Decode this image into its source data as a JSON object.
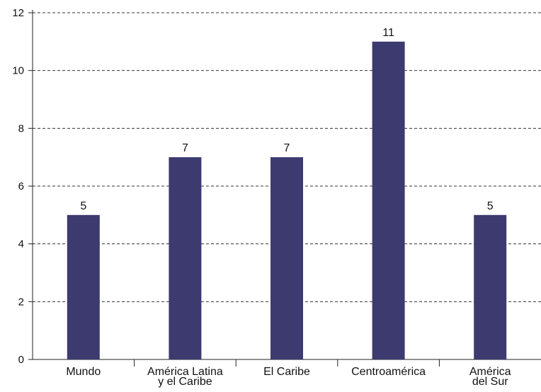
{
  "chart_data": {
    "type": "bar",
    "categories": [
      [
        "Mundo"
      ],
      [
        "América Latina",
        "y el Caribe"
      ],
      [
        "El Caribe"
      ],
      [
        "Centroamérica"
      ],
      [
        "América",
        "del Sur"
      ]
    ],
    "values": [
      5,
      7,
      7,
      11,
      5
    ],
    "data_labels": [
      "5",
      "7",
      "7",
      "11",
      "5"
    ],
    "yticks": [
      "0",
      "2",
      "4",
      "6",
      "8",
      "10",
      "12"
    ],
    "ylim": [
      0,
      12
    ],
    "grid": "horizontal dashed",
    "bar_color": "#3c3a6e",
    "title": "",
    "xlabel": "",
    "ylabel": ""
  }
}
